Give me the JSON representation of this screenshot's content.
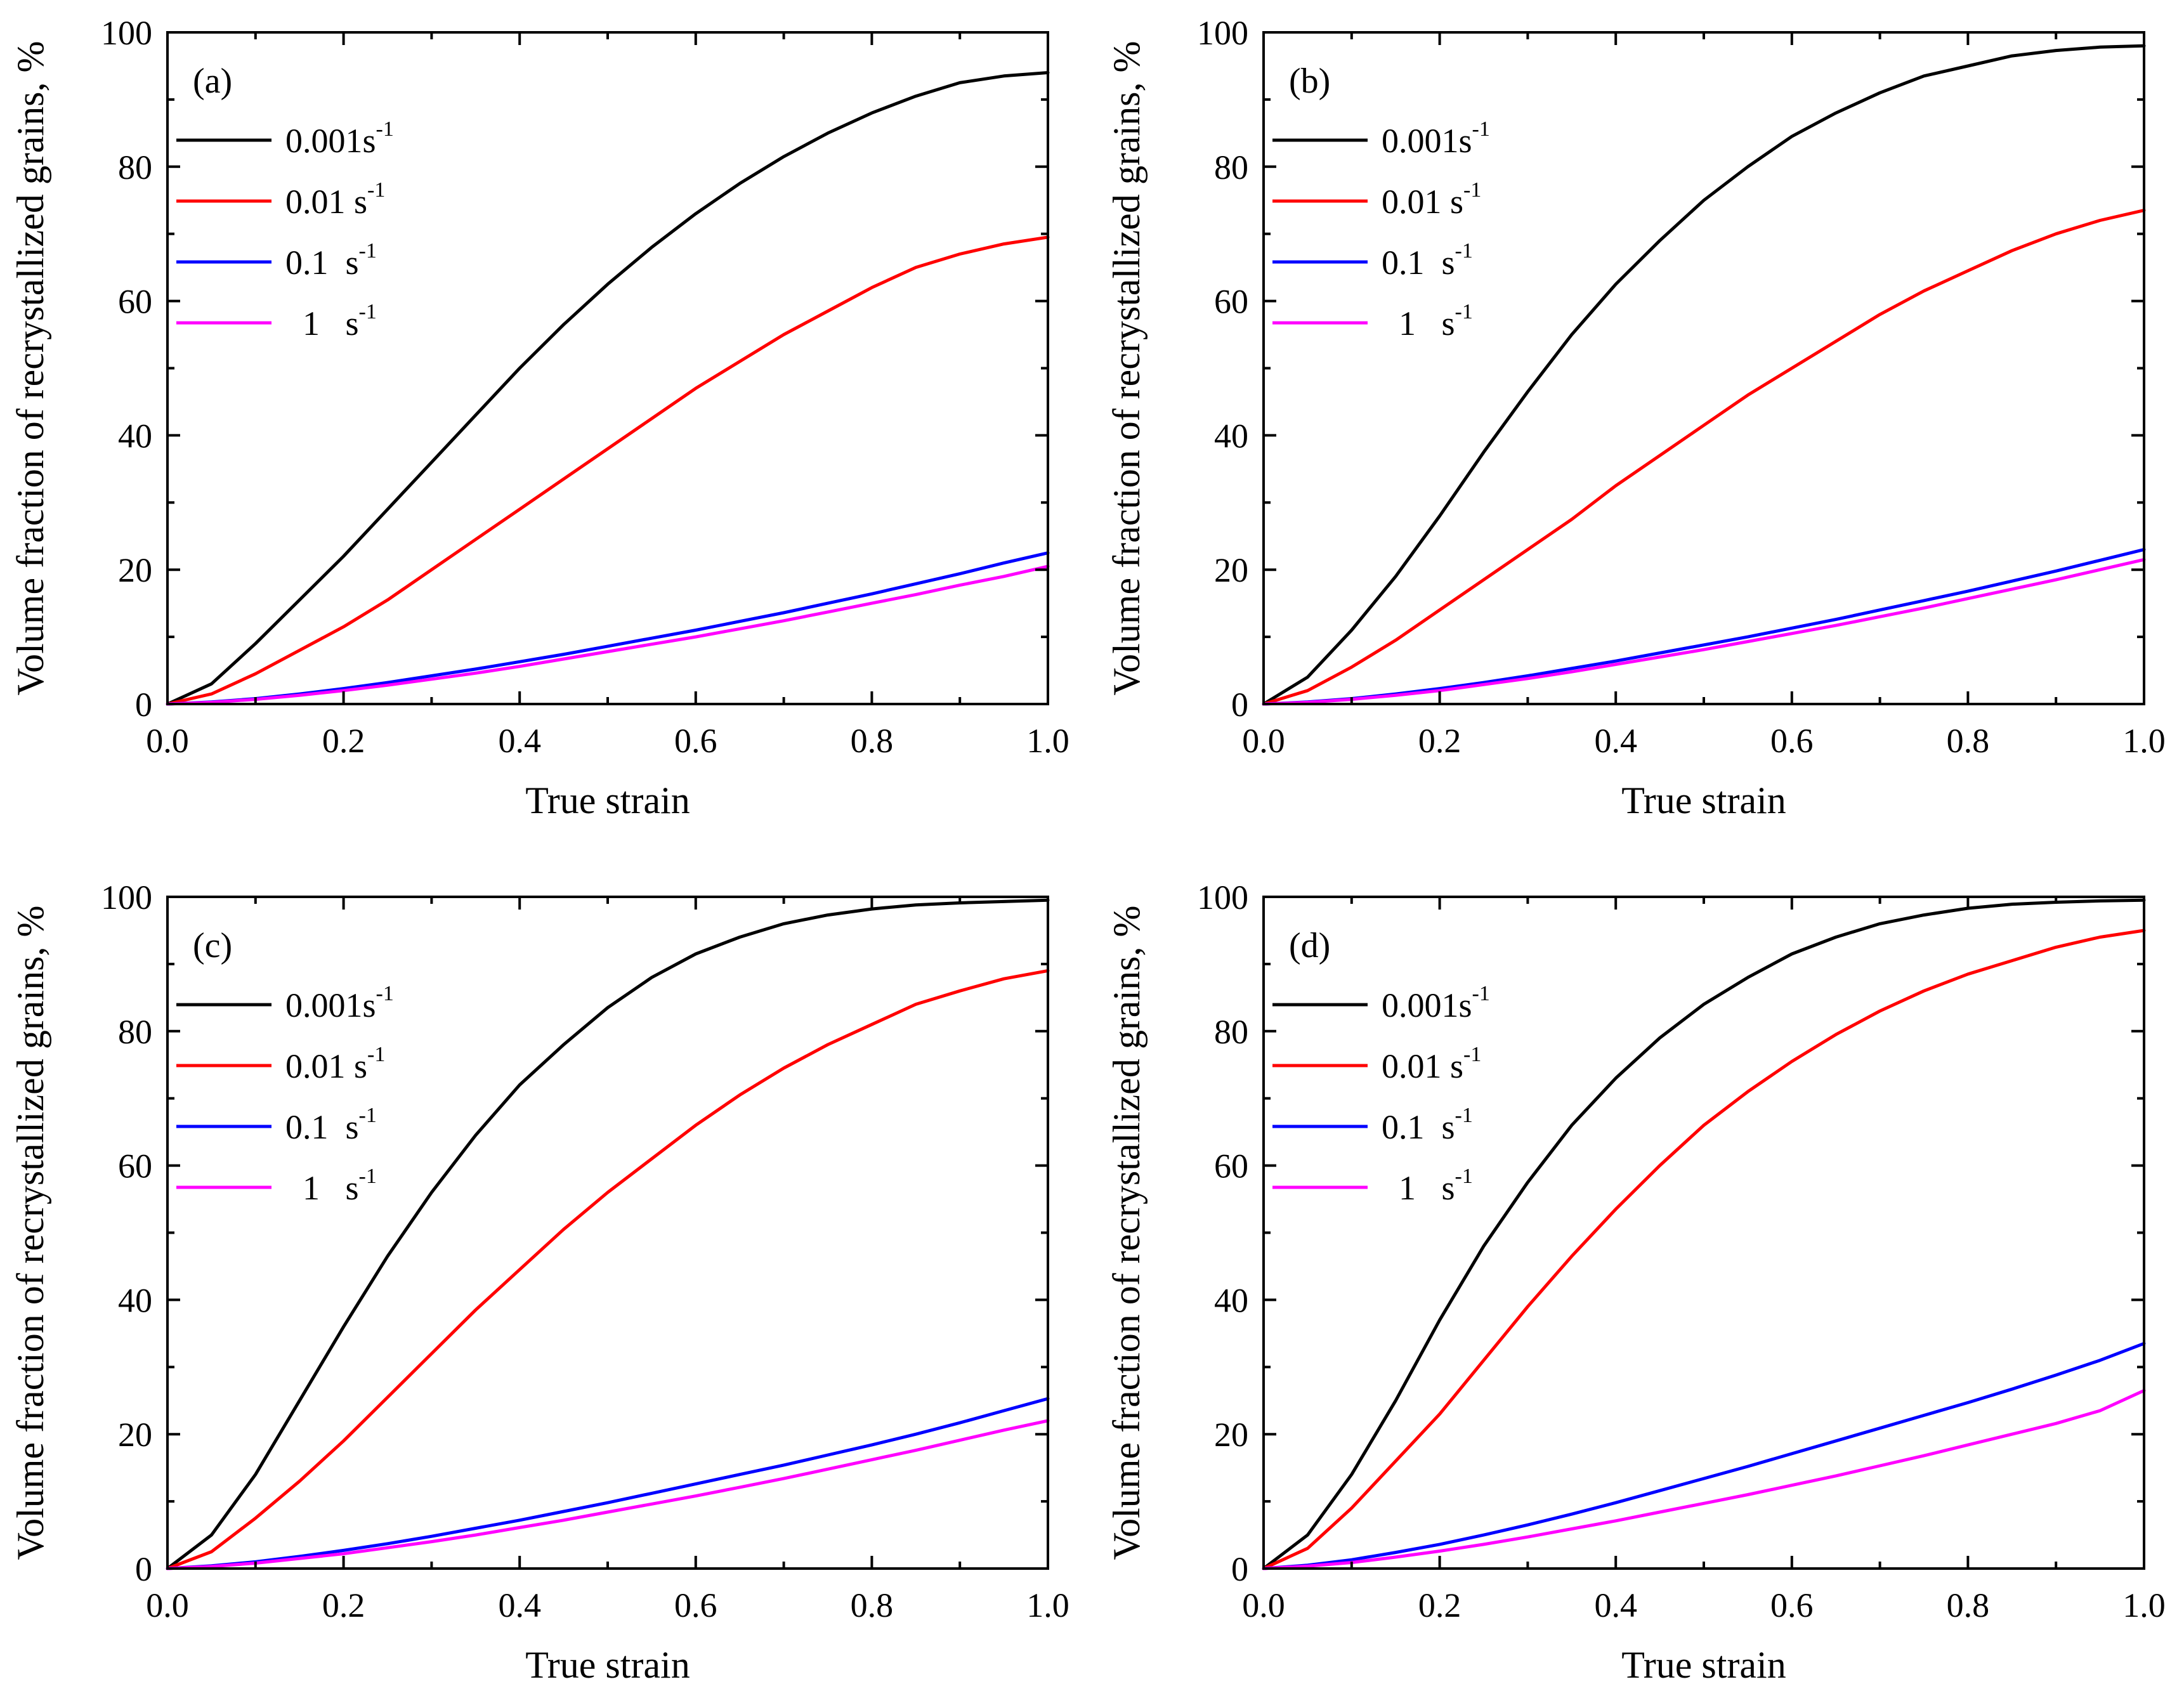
{
  "figure": {
    "chart_data": [
      {
        "type": "line",
        "panel_label": "(a)",
        "xlabel": "True strain",
        "ylabel": "Volume fraction of recrystallized grains, %",
        "xlim": [
          0,
          1.0
        ],
        "ylim": [
          0,
          100
        ],
        "xticks": [
          "0.0",
          "0.2",
          "0.4",
          "0.6",
          "0.8",
          "1.0"
        ],
        "yticks": [
          "0",
          "20",
          "40",
          "60",
          "80",
          "100"
        ],
        "grid": false,
        "legend_position": "top-left",
        "x": [
          0,
          0.05,
          0.1,
          0.15,
          0.2,
          0.25,
          0.3,
          0.35,
          0.4,
          0.45,
          0.5,
          0.55,
          0.6,
          0.65,
          0.7,
          0.75,
          0.8,
          0.85,
          0.9,
          0.95,
          1.0
        ],
        "series": [
          {
            "name": "0.001",
            "unit": "s",
            "exp": "-1",
            "color": "#000000",
            "values": [
              0,
              3,
              9,
              15.5,
              22,
              29,
              36,
              43,
              50,
              56.5,
              62.5,
              68,
              73,
              77.5,
              81.5,
              85,
              88,
              90.5,
              92.5,
              93.5,
              94
            ]
          },
          {
            "name": "0.01 ",
            "unit": "s",
            "exp": "-1",
            "color": "#ff0000",
            "values": [
              0,
              1.5,
              4.5,
              8,
              11.5,
              15.5,
              20,
              24.5,
              29,
              33.5,
              38,
              42.5,
              47,
              51,
              55,
              58.5,
              62,
              65,
              67,
              68.5,
              69.5
            ]
          },
          {
            "name": "0.1  ",
            "unit": "s",
            "exp": "-1",
            "color": "#0000ff",
            "values": [
              0,
              0.3,
              0.8,
              1.5,
              2.3,
              3.2,
              4.2,
              5.2,
              6.3,
              7.4,
              8.6,
              9.8,
              11,
              12.3,
              13.6,
              15,
              16.4,
              17.9,
              19.4,
              21,
              22.5
            ]
          },
          {
            "name": "  1   ",
            "unit": "s",
            "exp": "-1",
            "color": "#ff00ff",
            "values": [
              0,
              0.25,
              0.7,
              1.3,
              2,
              2.8,
              3.7,
              4.6,
              5.6,
              6.7,
              7.8,
              8.9,
              10,
              11.2,
              12.4,
              13.7,
              15,
              16.3,
              17.7,
              19,
              20.5
            ]
          }
        ]
      },
      {
        "type": "line",
        "panel_label": "(b)",
        "xlabel": "True strain",
        "ylabel": "Volume fraction of recrystallized grains, %",
        "xlim": [
          0,
          1.0
        ],
        "ylim": [
          0,
          100
        ],
        "xticks": [
          "0.0",
          "0.2",
          "0.4",
          "0.6",
          "0.8",
          "1.0"
        ],
        "yticks": [
          "0",
          "20",
          "40",
          "60",
          "80",
          "100"
        ],
        "grid": false,
        "legend_position": "top-left",
        "x": [
          0,
          0.05,
          0.1,
          0.15,
          0.2,
          0.25,
          0.3,
          0.35,
          0.4,
          0.45,
          0.5,
          0.55,
          0.6,
          0.65,
          0.7,
          0.75,
          0.8,
          0.85,
          0.9,
          0.95,
          1.0
        ],
        "series": [
          {
            "name": "0.001",
            "unit": "s",
            "exp": "-1",
            "color": "#000000",
            "values": [
              0,
              4,
              11,
              19,
              28,
              37.5,
              46.5,
              55,
              62.5,
              69,
              75,
              80,
              84.5,
              88,
              91,
              93.5,
              95,
              96.5,
              97.3,
              97.8,
              98
            ]
          },
          {
            "name": "0.01 ",
            "unit": "s",
            "exp": "-1",
            "color": "#ff0000",
            "values": [
              0,
              2,
              5.5,
              9.5,
              14,
              18.5,
              23,
              27.5,
              32.5,
              37,
              41.5,
              46,
              50,
              54,
              58,
              61.5,
              64.5,
              67.5,
              70,
              72,
              73.5
            ]
          },
          {
            "name": "0.1  ",
            "unit": "s",
            "exp": "-1",
            "color": "#0000ff",
            "values": [
              0,
              0.3,
              0.8,
              1.5,
              2.3,
              3.2,
              4.2,
              5.3,
              6.4,
              7.6,
              8.8,
              10,
              11.3,
              12.6,
              14,
              15.4,
              16.8,
              18.3,
              19.8,
              21.4,
              23
            ]
          },
          {
            "name": "  1   ",
            "unit": "s",
            "exp": "-1",
            "color": "#ff00ff",
            "values": [
              0,
              0.25,
              0.7,
              1.3,
              2,
              2.9,
              3.8,
              4.8,
              5.9,
              7,
              8.1,
              9.3,
              10.5,
              11.7,
              13,
              14.3,
              15.7,
              17.1,
              18.5,
              20,
              21.5
            ]
          }
        ]
      },
      {
        "type": "line",
        "panel_label": "(c)",
        "xlabel": "True strain",
        "ylabel": "Volume fraction of recrystallized grains, %",
        "xlim": [
          0,
          1.0
        ],
        "ylim": [
          0,
          100
        ],
        "xticks": [
          "0.0",
          "0.2",
          "0.4",
          "0.6",
          "0.8",
          "1.0"
        ],
        "yticks": [
          "0",
          "20",
          "40",
          "60",
          "80",
          "100"
        ],
        "grid": false,
        "legend_position": "top-left",
        "x": [
          0,
          0.05,
          0.1,
          0.15,
          0.2,
          0.25,
          0.3,
          0.35,
          0.4,
          0.45,
          0.5,
          0.55,
          0.6,
          0.65,
          0.7,
          0.75,
          0.8,
          0.85,
          0.9,
          0.95,
          1.0
        ],
        "series": [
          {
            "name": "0.001",
            "unit": "s",
            "exp": "-1",
            "color": "#000000",
            "values": [
              0,
              5,
              14,
              25,
              36,
              46.5,
              56,
              64.5,
              72,
              78,
              83.5,
              88,
              91.5,
              94,
              96,
              97.3,
              98.2,
              98.8,
              99.1,
              99.3,
              99.5
            ]
          },
          {
            "name": "0.01 ",
            "unit": "s",
            "exp": "-1",
            "color": "#ff0000",
            "values": [
              0,
              2.5,
              7.5,
              13,
              19,
              25.5,
              32,
              38.5,
              44.5,
              50.5,
              56,
              61,
              66,
              70.5,
              74.5,
              78,
              81,
              84,
              86,
              87.8,
              89
            ]
          },
          {
            "name": "0.1  ",
            "unit": "s",
            "exp": "-1",
            "color": "#0000ff",
            "values": [
              0,
              0.4,
              1,
              1.8,
              2.7,
              3.7,
              4.8,
              6,
              7.2,
              8.5,
              9.8,
              11.2,
              12.6,
              14,
              15.4,
              16.9,
              18.4,
              20,
              21.7,
              23.5,
              25.3
            ]
          },
          {
            "name": "  1   ",
            "unit": "s",
            "exp": "-1",
            "color": "#ff00ff",
            "values": [
              0,
              0.3,
              0.8,
              1.5,
              2.2,
              3.1,
              4,
              5,
              6.1,
              7.2,
              8.4,
              9.6,
              10.8,
              12.1,
              13.4,
              14.8,
              16.2,
              17.6,
              19.1,
              20.6,
              22
            ]
          }
        ]
      },
      {
        "type": "line",
        "panel_label": "(d)",
        "xlabel": "True strain",
        "ylabel": "Volume fraction of recrystallized grains, %",
        "xlim": [
          0,
          1.0
        ],
        "ylim": [
          0,
          100
        ],
        "xticks": [
          "0.0",
          "0.2",
          "0.4",
          "0.6",
          "0.8",
          "1.0"
        ],
        "yticks": [
          "0",
          "20",
          "40",
          "60",
          "80",
          "100"
        ],
        "grid": false,
        "legend_position": "top-left",
        "x": [
          0,
          0.05,
          0.1,
          0.15,
          0.2,
          0.25,
          0.3,
          0.35,
          0.4,
          0.45,
          0.5,
          0.55,
          0.6,
          0.65,
          0.7,
          0.75,
          0.8,
          0.85,
          0.9,
          0.95,
          1.0
        ],
        "series": [
          {
            "name": "0.001",
            "unit": "s",
            "exp": "-1",
            "color": "#000000",
            "values": [
              0,
              5,
              14,
              25,
              37,
              48,
              57.5,
              66,
              73,
              79,
              84,
              88,
              91.5,
              94,
              96,
              97.3,
              98.3,
              98.9,
              99.2,
              99.4,
              99.5
            ]
          },
          {
            "name": "0.01 ",
            "unit": "s",
            "exp": "-1",
            "color": "#ff0000",
            "values": [
              0,
              3,
              9,
              16,
              23,
              31,
              39,
              46.5,
              53.5,
              60,
              66,
              71,
              75.5,
              79.5,
              83,
              86,
              88.5,
              90.5,
              92.5,
              94,
              95
            ]
          },
          {
            "name": "0.1  ",
            "unit": "s",
            "exp": "-1",
            "color": "#0000ff",
            "values": [
              0,
              0.5,
              1.3,
              2.4,
              3.6,
              5,
              6.5,
              8.1,
              9.8,
              11.6,
              13.4,
              15.2,
              17.1,
              19,
              20.9,
              22.8,
              24.7,
              26.7,
              28.8,
              31,
              33.5
            ]
          },
          {
            "name": "  1   ",
            "unit": "s",
            "exp": "-1",
            "color": "#ff00ff",
            "values": [
              0,
              0.35,
              0.9,
              1.7,
              2.6,
              3.6,
              4.7,
              5.9,
              7.1,
              8.4,
              9.7,
              11,
              12.4,
              13.8,
              15.3,
              16.8,
              18.4,
              20,
              21.6,
              23.5,
              26.5
            ]
          }
        ]
      }
    ]
  }
}
